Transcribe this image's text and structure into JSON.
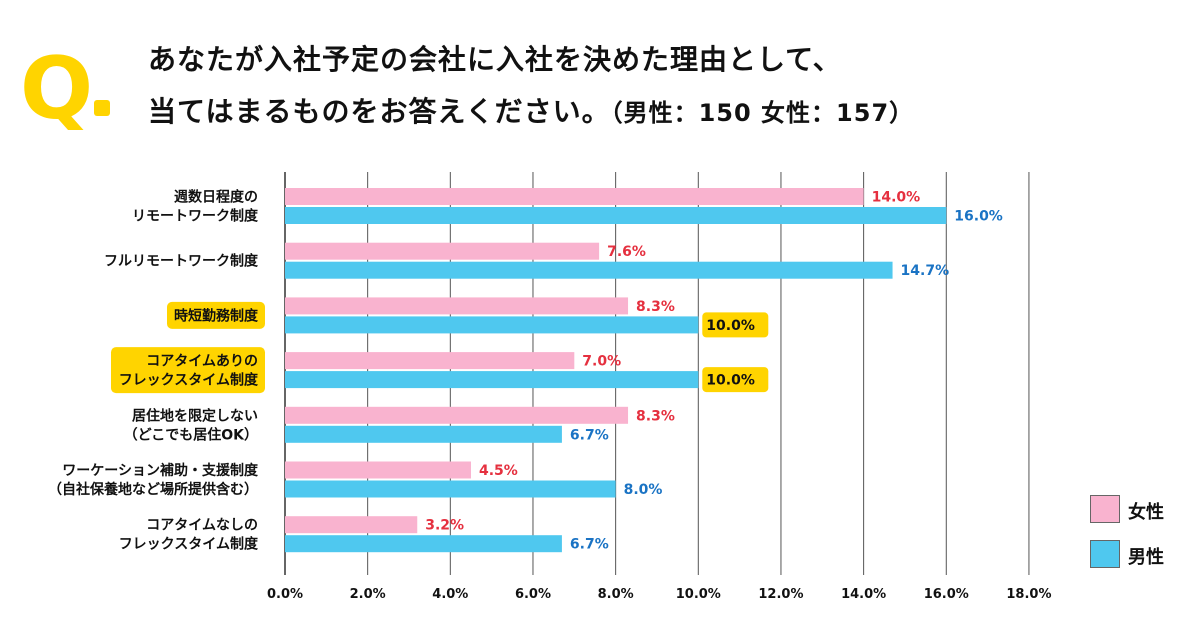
{
  "header": {
    "q_mark": "Q.",
    "title_line1": "あなたが入社予定の会社に入社を決めた理由として、",
    "title_line2": "当てはまるものをお答えください。",
    "title_note": "（男性：150 女性：157）"
  },
  "colors": {
    "female": "#f9b3cf",
    "male": "#4fc8ef",
    "female_label": "#e5303f",
    "male_label": "#1a73c4",
    "highlight": "#ffd400",
    "grid": "#555555"
  },
  "legend": [
    {
      "name": "女性",
      "color": "#f9b3cf"
    },
    {
      "name": "男性",
      "color": "#4fc8ef"
    }
  ],
  "chart_data": {
    "type": "bar",
    "orientation": "horizontal",
    "categories": [
      {
        "lines": [
          "週数日程度の",
          "リモートワーク制度"
        ],
        "highlight": false
      },
      {
        "lines": [
          "フルリモートワーク制度"
        ],
        "highlight": false
      },
      {
        "lines": [
          "時短勤務制度"
        ],
        "highlight": true
      },
      {
        "lines": [
          "コアタイムありの",
          "フレックスタイム制度"
        ],
        "highlight": true
      },
      {
        "lines": [
          "居住地を限定しない",
          "（どこでも居住OK）"
        ],
        "highlight": false
      },
      {
        "lines": [
          "ワーケーション補助・支援制度",
          "（自社保養地など場所提供含む）"
        ],
        "highlight": false
      },
      {
        "lines": [
          "コアタイムなしの",
          "フレックスタイム制度"
        ],
        "highlight": false
      }
    ],
    "series": [
      {
        "name": "女性",
        "values": [
          14.0,
          7.6,
          8.3,
          7.0,
          8.3,
          4.5,
          3.2
        ],
        "labels": [
          "14.0%",
          "7.6%",
          "8.3%",
          "7.0%",
          "8.3%",
          "4.5%",
          "3.2%"
        ]
      },
      {
        "name": "男性",
        "values": [
          16.0,
          14.7,
          10.0,
          10.0,
          6.7,
          8.0,
          6.7
        ],
        "labels": [
          "16.0%",
          "14.7%",
          "10.0%",
          "10.0%",
          "6.7%",
          "8.0%",
          "6.7%"
        ],
        "highlight_labels": [
          false,
          false,
          true,
          true,
          false,
          false,
          false
        ]
      }
    ],
    "xlim": [
      0,
      18
    ],
    "xticks": [
      "0.0%",
      "2.0%",
      "4.0%",
      "6.0%",
      "8.0%",
      "10.0%",
      "12.0%",
      "14.0%",
      "16.0%",
      "18.0%"
    ],
    "grid": true,
    "legend_position": "right"
  }
}
